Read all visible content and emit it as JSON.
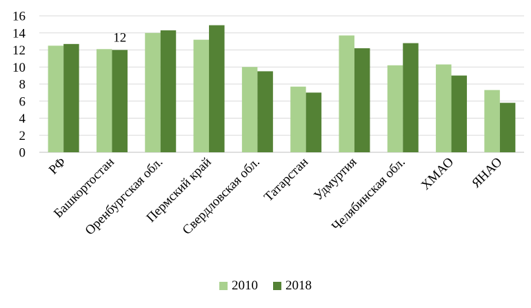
{
  "chart_data": {
    "type": "bar",
    "categories": [
      "РФ",
      "Башкортостан",
      "Оренбургская обл.",
      "Пермский край",
      "Свердловская обл.",
      "Татарстан",
      "Удмуртия",
      "Челябинская обл.",
      "ХМАО",
      "ЯНАО"
    ],
    "series": [
      {
        "name": "2010",
        "color": "#a9d18e",
        "values": [
          12.5,
          12.1,
          14.0,
          13.2,
          10.0,
          7.7,
          13.7,
          10.2,
          10.3,
          7.3
        ]
      },
      {
        "name": "2018",
        "color": "#548235",
        "values": [
          12.7,
          12.0,
          14.3,
          14.9,
          9.5,
          7.0,
          12.2,
          12.8,
          9.0,
          5.8
        ]
      }
    ],
    "data_labels": [
      {
        "category": "Башкортостан",
        "series": "2018",
        "text": "12"
      }
    ],
    "ylim": [
      0,
      16
    ],
    "yticks": [
      0,
      2,
      4,
      6,
      8,
      10,
      12,
      14,
      16
    ],
    "grid": true,
    "legend_position": "bottom",
    "title": "",
    "xlabel": "",
    "ylabel": ""
  }
}
